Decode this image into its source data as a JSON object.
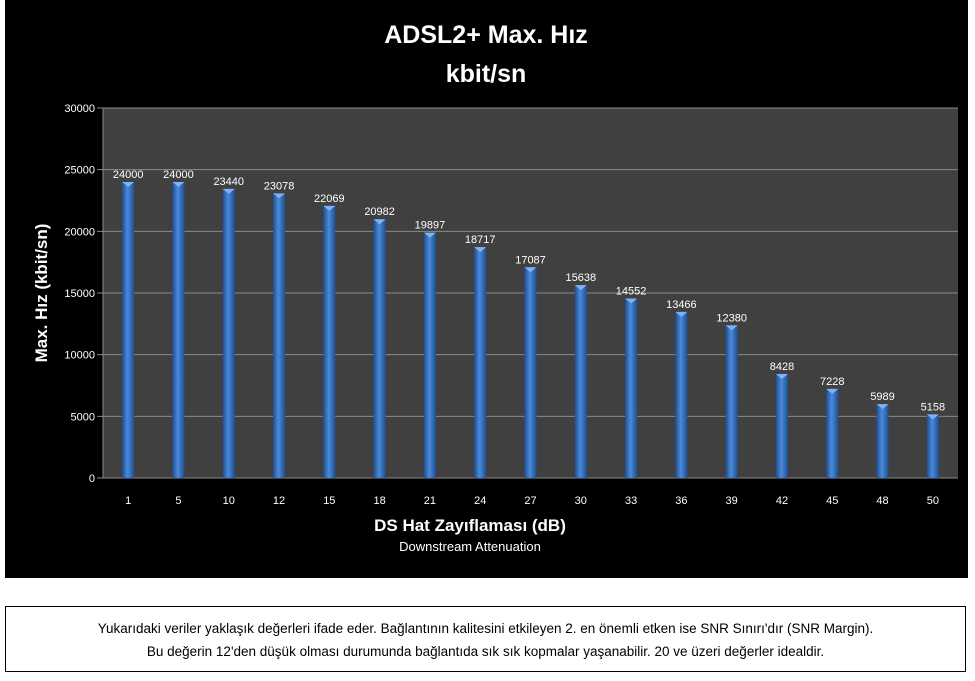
{
  "chart_data": {
    "type": "bar",
    "title": [
      "ADSL2+ Max. Hız",
      "kbit/sn"
    ],
    "xlabel": "DS Hat Zayıflaması  (dB)",
    "xsublabel": "Downstream Attenuation",
    "ylabel": "Max. Hız (kbit/sn)",
    "ylim": [
      0,
      30000
    ],
    "yticks": [
      0,
      5000,
      10000,
      15000,
      20000,
      25000,
      30000
    ],
    "grid": true,
    "categories": [
      "1",
      "5",
      "10",
      "12",
      "15",
      "18",
      "21",
      "24",
      "27",
      "30",
      "33",
      "36",
      "39",
      "42",
      "45",
      "48",
      "50"
    ],
    "values": [
      24000,
      24000,
      23440,
      23078,
      22069,
      20982,
      19897,
      18717,
      17087,
      15638,
      14552,
      13466,
      12380,
      8428,
      7228,
      5989,
      5158
    ],
    "colors": {
      "bar": "#3a78c8",
      "plot_bg": "#404040",
      "bg": "#000000",
      "grid": "#8a8a8a"
    }
  },
  "note": {
    "line1": "Yukarıdaki veriler yaklaşık değerleri ifade eder. Bağlantının kalitesini etkileyen 2. en önemli etken ise SNR Sınırı'dır (SNR Margin).",
    "line2": "Bu değerin 12'den düşük olması durumunda bağlantıda sık sık kopmalar yaşanabilir. 20 ve üzeri değerler idealdir."
  }
}
